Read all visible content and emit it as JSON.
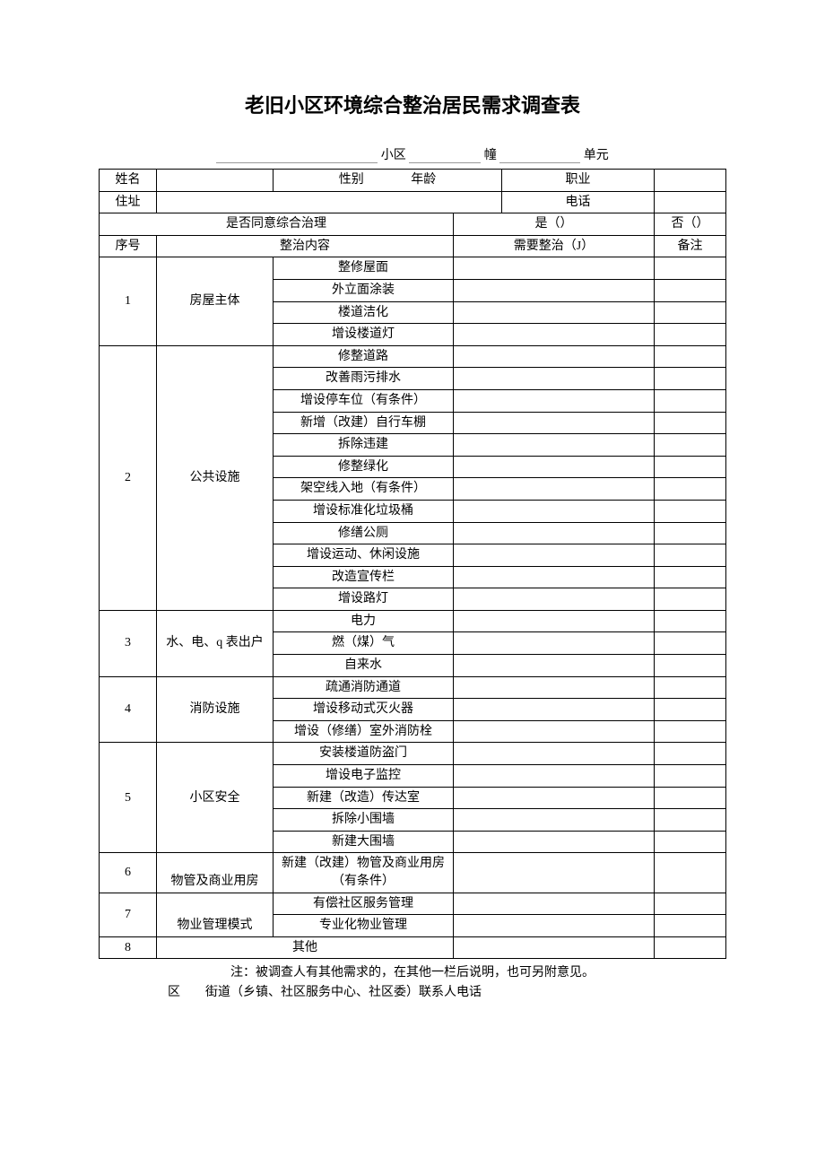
{
  "title": "老旧小区环境综合整治居民需求调查表",
  "subtitle": {
    "sq": "小区",
    "bld": "幢",
    "unit": "单元"
  },
  "info": {
    "name_label": "姓名",
    "gender_label": "性别",
    "age_label": "年龄",
    "occupation_label": "职业",
    "address_label": "住址",
    "phone_label": "电话",
    "consent_label": "是否同意综合治理",
    "consent_yes": "是（）",
    "consent_no": "否（）"
  },
  "headers": {
    "seq": "序号",
    "content": "整治内容",
    "need": "需要整治（J）",
    "note": "备注"
  },
  "sections": [
    {
      "seq": "1",
      "category": "房屋主体",
      "items": [
        "整修屋面",
        "外立面涂装",
        "楼道洁化",
        "增设楼道灯"
      ]
    },
    {
      "seq": "2",
      "category": "公共设施",
      "items": [
        "修整道路",
        "改善雨污排水",
        "增设停车位（有条件）",
        "新增（改建）自行车棚",
        "拆除违建",
        "修整绿化",
        "架空线入地（有条件）",
        "增设标准化垃圾桶",
        "修缮公厕",
        "增设运动、休闲设施",
        "改造宣传栏",
        "增设路灯"
      ]
    },
    {
      "seq": "3",
      "category": "水、电、q 表出户",
      "items": [
        "电力",
        "燃（煤）气",
        "自来水"
      ]
    },
    {
      "seq": "4",
      "category": "消防设施",
      "items": [
        "疏通消防通道",
        "增设移动式灭火器",
        "增设（修缮）室外消防栓"
      ]
    },
    {
      "seq": "5",
      "category": "小区安全",
      "items": [
        "安装楼道防盗门",
        "增设电子监控",
        "新建（改造）传达室",
        "拆除小围墙",
        "新建大围墙"
      ]
    },
    {
      "seq": "6",
      "category": "物管及商业用房",
      "cat_valign": "bottom",
      "items": [
        "新建（改建）物管及商业用房（有条件）"
      ]
    },
    {
      "seq": "7",
      "category": "物业管理模式",
      "cat_valign": "bottom",
      "items": [
        "有偿社区服务管理",
        "专业化物业管理"
      ]
    },
    {
      "seq": "8",
      "category_merged": "其他"
    }
  ],
  "footnote1": "注：被调查人有其他需求的，在其他一栏后说明，也可另附意见。",
  "footnote2": "区　　街道（乡镇、社区服务中心、社区委）联系人电话"
}
